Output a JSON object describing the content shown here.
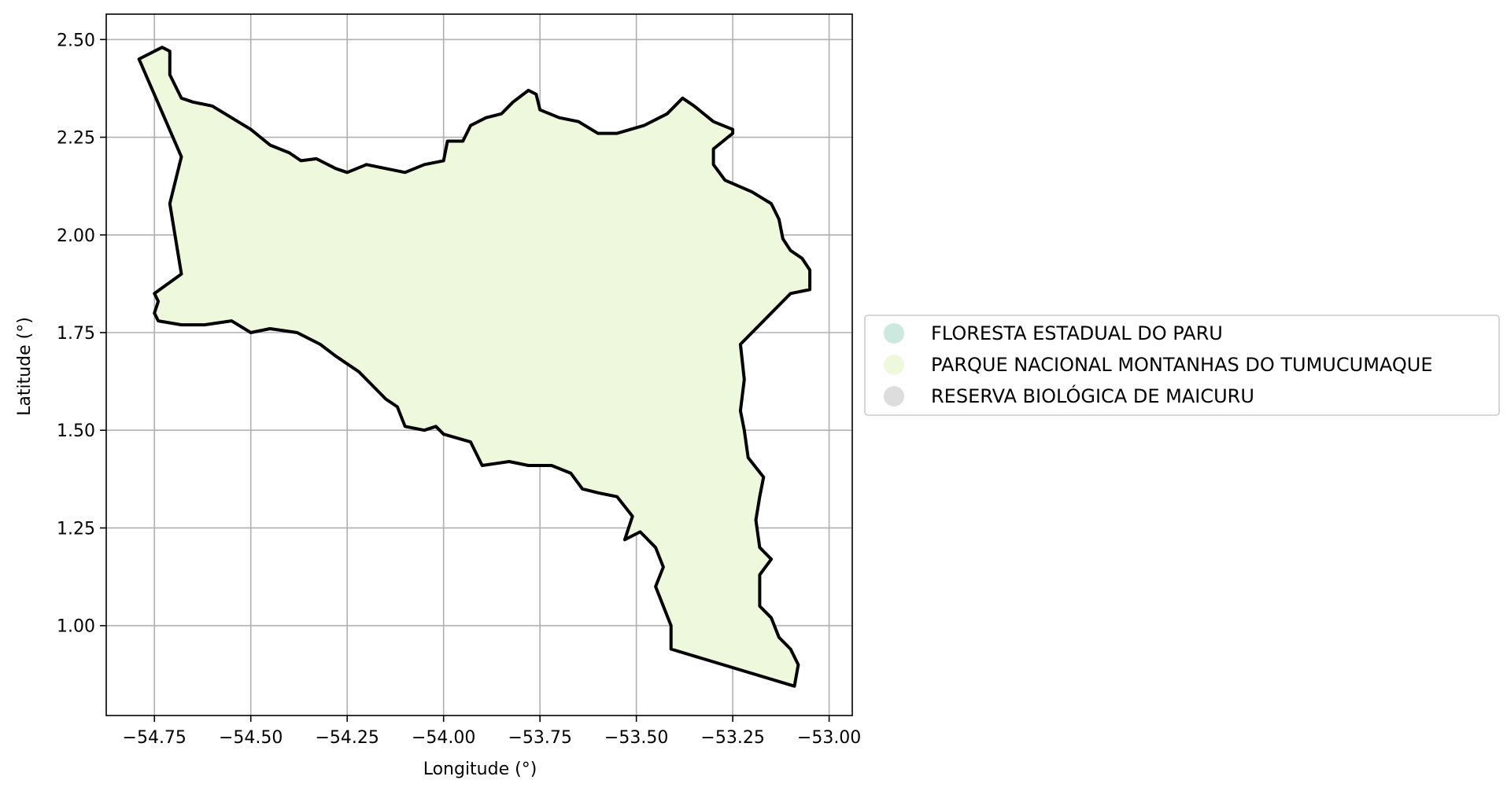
{
  "chart_data": {
    "type": "map",
    "xlabel": "Longitude (°)",
    "ylabel": "Latitude (°)",
    "xlim": [
      -54.875,
      -52.94
    ],
    "ylim": [
      0.77,
      2.565
    ],
    "xticks": [
      -54.75,
      -54.5,
      -54.25,
      -54.0,
      -53.75,
      -53.5,
      -53.25,
      -53.0
    ],
    "xtick_labels": [
      "−54.75",
      "−54.50",
      "−54.25",
      "−54.00",
      "−53.75",
      "−53.50",
      "−53.25",
      "−53.00"
    ],
    "yticks": [
      1.0,
      1.25,
      1.5,
      1.75,
      2.0,
      2.25,
      2.5
    ],
    "ytick_labels": [
      "1.00",
      "1.25",
      "1.50",
      "1.75",
      "2.00",
      "2.25",
      "2.50"
    ],
    "grid": true,
    "legend_placement": "center-right outside",
    "legend": [
      {
        "label": "FLORESTA ESTADUAL DO PARU",
        "color": "#cce9df"
      },
      {
        "label": "PARQUE NACIONAL MONTANHAS DO TUMUCUMAQUE",
        "color": "#eef8dc"
      },
      {
        "label": "RESERVA BIOLÓGICA DE MAICURU",
        "color": "#dddddd"
      }
    ],
    "regions": [
      {
        "label": "PARQUE NACIONAL MONTANHAS DO TUMUCUMAQUE",
        "fill": "#eef8dc",
        "outline": "#000000",
        "coordinates": [
          [
            -54.79,
            2.45
          ],
          [
            -54.73,
            2.48
          ],
          [
            -54.71,
            2.47
          ],
          [
            -54.71,
            2.45
          ],
          [
            -54.71,
            2.41
          ],
          [
            -54.69,
            2.37
          ],
          [
            -54.68,
            2.35
          ],
          [
            -54.65,
            2.34
          ],
          [
            -54.6,
            2.33
          ],
          [
            -54.55,
            2.3
          ],
          [
            -54.5,
            2.27
          ],
          [
            -54.45,
            2.23
          ],
          [
            -54.4,
            2.21
          ],
          [
            -54.37,
            2.19
          ],
          [
            -54.33,
            2.195
          ],
          [
            -54.28,
            2.17
          ],
          [
            -54.25,
            2.16
          ],
          [
            -54.2,
            2.18
          ],
          [
            -54.15,
            2.17
          ],
          [
            -54.1,
            2.16
          ],
          [
            -54.05,
            2.18
          ],
          [
            -54.0,
            2.19
          ],
          [
            -53.99,
            2.24
          ],
          [
            -53.95,
            2.24
          ],
          [
            -53.93,
            2.28
          ],
          [
            -53.89,
            2.3
          ],
          [
            -53.85,
            2.31
          ],
          [
            -53.82,
            2.34
          ],
          [
            -53.78,
            2.37
          ],
          [
            -53.76,
            2.36
          ],
          [
            -53.75,
            2.32
          ],
          [
            -53.7,
            2.3
          ],
          [
            -53.65,
            2.29
          ],
          [
            -53.6,
            2.26
          ],
          [
            -53.55,
            2.26
          ],
          [
            -53.48,
            2.28
          ],
          [
            -53.42,
            2.31
          ],
          [
            -53.38,
            2.35
          ],
          [
            -53.35,
            2.33
          ],
          [
            -53.3,
            2.29
          ],
          [
            -53.25,
            2.27
          ],
          [
            -53.25,
            2.26
          ],
          [
            -53.3,
            2.22
          ],
          [
            -53.3,
            2.18
          ],
          [
            -53.27,
            2.14
          ],
          [
            -53.2,
            2.11
          ],
          [
            -53.15,
            2.08
          ],
          [
            -53.13,
            2.04
          ],
          [
            -53.12,
            1.99
          ],
          [
            -53.1,
            1.96
          ],
          [
            -53.07,
            1.94
          ],
          [
            -53.05,
            1.91
          ],
          [
            -53.05,
            1.86
          ],
          [
            -53.1,
            1.85
          ],
          [
            -53.23,
            1.72
          ],
          [
            -53.22,
            1.63
          ],
          [
            -53.23,
            1.55
          ],
          [
            -53.22,
            1.5
          ],
          [
            -53.21,
            1.43
          ],
          [
            -53.17,
            1.38
          ],
          [
            -53.18,
            1.33
          ],
          [
            -53.19,
            1.27
          ],
          [
            -53.18,
            1.2
          ],
          [
            -53.15,
            1.17
          ],
          [
            -53.18,
            1.13
          ],
          [
            -53.18,
            1.05
          ],
          [
            -53.15,
            1.02
          ],
          [
            -53.13,
            0.97
          ],
          [
            -53.1,
            0.94
          ],
          [
            -53.08,
            0.9
          ],
          [
            -53.09,
            0.845
          ],
          [
            -53.41,
            0.94
          ],
          [
            -53.41,
            1.0
          ],
          [
            -53.43,
            1.05
          ],
          [
            -53.45,
            1.1
          ],
          [
            -53.43,
            1.15
          ],
          [
            -53.45,
            1.2
          ],
          [
            -53.49,
            1.24
          ],
          [
            -53.53,
            1.22
          ],
          [
            -53.51,
            1.28
          ],
          [
            -53.55,
            1.33
          ],
          [
            -53.6,
            1.34
          ],
          [
            -53.64,
            1.35
          ],
          [
            -53.67,
            1.39
          ],
          [
            -53.72,
            1.41
          ],
          [
            -53.78,
            1.41
          ],
          [
            -53.83,
            1.42
          ],
          [
            -53.9,
            1.41
          ],
          [
            -53.93,
            1.47
          ],
          [
            -54.0,
            1.49
          ],
          [
            -54.02,
            1.51
          ],
          [
            -54.05,
            1.5
          ],
          [
            -54.1,
            1.51
          ],
          [
            -54.12,
            1.56
          ],
          [
            -54.15,
            1.58
          ],
          [
            -54.17,
            1.6
          ],
          [
            -54.22,
            1.65
          ],
          [
            -54.28,
            1.69
          ],
          [
            -54.32,
            1.72
          ],
          [
            -54.38,
            1.75
          ],
          [
            -54.45,
            1.76
          ],
          [
            -54.5,
            1.75
          ],
          [
            -54.55,
            1.78
          ],
          [
            -54.62,
            1.77
          ],
          [
            -54.68,
            1.77
          ],
          [
            -54.74,
            1.78
          ],
          [
            -54.75,
            1.8
          ],
          [
            -54.74,
            1.83
          ],
          [
            -54.75,
            1.85
          ],
          [
            -54.68,
            1.9
          ],
          [
            -54.71,
            2.08
          ],
          [
            -54.68,
            2.2
          ]
        ]
      }
    ]
  }
}
